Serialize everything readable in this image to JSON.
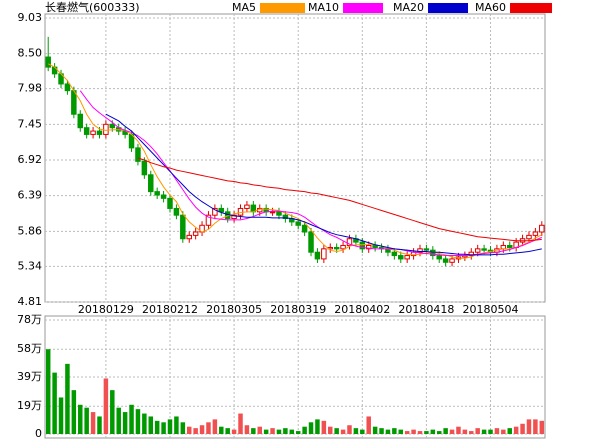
{
  "chart_data": {
    "type": "candlestick",
    "title": "长春燃气(600333)",
    "categories": [
      null,
      null,
      null,
      null,
      null,
      null,
      null,
      null,
      null,
      "20180129",
      null,
      null,
      null,
      null,
      null,
      null,
      null,
      null,
      null,
      "20180212",
      null,
      null,
      null,
      null,
      null,
      null,
      null,
      null,
      null,
      "20180305",
      null,
      null,
      null,
      null,
      null,
      null,
      null,
      null,
      null,
      "20180319",
      null,
      null,
      null,
      null,
      null,
      null,
      null,
      null,
      null,
      "20180402",
      null,
      null,
      null,
      null,
      null,
      null,
      null,
      null,
      null,
      "20180418",
      null,
      null,
      null,
      null,
      null,
      null,
      null,
      null,
      null,
      "20180504",
      null,
      null,
      null,
      null,
      null,
      null,
      null,
      null
    ],
    "open": [
      8.45,
      8.3,
      8.2,
      8.05,
      7.95,
      7.6,
      7.4,
      7.3,
      7.35,
      7.3,
      7.45,
      7.4,
      7.35,
      7.3,
      7.1,
      6.9,
      6.7,
      6.45,
      6.4,
      6.35,
      6.2,
      6.1,
      5.75,
      5.8,
      5.85,
      5.95,
      6.1,
      6.2,
      6.15,
      6.05,
      6.1,
      6.2,
      6.25,
      6.15,
      6.2,
      6.15,
      6.15,
      6.1,
      6.05,
      6.0,
      5.95,
      5.85,
      5.55,
      5.45,
      5.6,
      5.62,
      5.6,
      5.65,
      5.75,
      5.7,
      5.6,
      5.65,
      5.62,
      5.6,
      5.55,
      5.5,
      5.45,
      5.5,
      5.55,
      5.6,
      5.58,
      5.5,
      5.45,
      5.4,
      5.45,
      5.48,
      5.5,
      5.55,
      5.6,
      5.58,
      5.55,
      5.6,
      5.65,
      5.62,
      5.7,
      5.75,
      5.8,
      5.85
    ],
    "high": [
      8.75,
      8.36,
      8.26,
      8.11,
      8.01,
      7.66,
      7.46,
      7.41,
      7.41,
      7.51,
      7.51,
      7.46,
      7.41,
      7.36,
      7.16,
      6.96,
      6.76,
      6.51,
      6.46,
      6.41,
      6.26,
      6.16,
      5.86,
      5.91,
      6.01,
      6.16,
      6.26,
      6.26,
      6.21,
      6.16,
      6.26,
      6.31,
      6.31,
      6.26,
      6.26,
      6.21,
      6.21,
      6.16,
      6.11,
      6.06,
      6.01,
      5.91,
      5.61,
      5.66,
      5.68,
      5.68,
      5.71,
      5.81,
      5.81,
      5.76,
      5.71,
      5.71,
      5.68,
      5.66,
      5.61,
      5.56,
      5.56,
      5.61,
      5.66,
      5.66,
      5.64,
      5.56,
      5.51,
      5.51,
      5.54,
      5.56,
      5.61,
      5.66,
      5.66,
      5.64,
      5.66,
      5.71,
      5.71,
      5.76,
      5.81,
      5.86,
      5.91,
      6.01
    ],
    "low": [
      8.24,
      8.14,
      7.99,
      7.89,
      7.54,
      7.34,
      7.24,
      7.24,
      7.24,
      7.24,
      7.34,
      7.29,
      7.24,
      7.04,
      6.84,
      6.64,
      6.39,
      6.34,
      6.29,
      6.14,
      6.04,
      5.69,
      5.69,
      5.74,
      5.79,
      5.89,
      6.04,
      6.09,
      5.99,
      5.99,
      6.04,
      6.14,
      6.09,
      6.09,
      6.09,
      6.09,
      6.04,
      5.99,
      5.94,
      5.89,
      5.79,
      5.49,
      5.39,
      5.39,
      5.54,
      5.54,
      5.54,
      5.59,
      5.64,
      5.54,
      5.54,
      5.56,
      5.54,
      5.49,
      5.44,
      5.39,
      5.39,
      5.44,
      5.49,
      5.52,
      5.44,
      5.39,
      5.34,
      5.34,
      5.39,
      5.42,
      5.44,
      5.49,
      5.52,
      5.49,
      5.49,
      5.54,
      5.56,
      5.56,
      5.64,
      5.69,
      5.74,
      5.79
    ],
    "close": [
      8.3,
      8.2,
      8.05,
      7.95,
      7.6,
      7.4,
      7.3,
      7.35,
      7.3,
      7.45,
      7.4,
      7.35,
      7.3,
      7.1,
      6.9,
      6.7,
      6.45,
      6.4,
      6.35,
      6.2,
      6.1,
      5.75,
      5.8,
      5.85,
      5.95,
      6.1,
      6.2,
      6.15,
      6.05,
      6.1,
      6.2,
      6.25,
      6.15,
      6.2,
      6.15,
      6.15,
      6.1,
      6.05,
      6.0,
      5.95,
      5.85,
      5.55,
      5.45,
      5.6,
      5.62,
      5.6,
      5.65,
      5.75,
      5.7,
      5.6,
      5.65,
      5.62,
      5.6,
      5.55,
      5.5,
      5.45,
      5.5,
      5.55,
      5.6,
      5.58,
      5.5,
      5.45,
      5.4,
      5.45,
      5.48,
      5.5,
      5.55,
      5.6,
      5.58,
      5.55,
      5.6,
      5.65,
      5.62,
      5.7,
      5.75,
      5.8,
      5.85,
      5.95
    ],
    "up_color": "#e00000",
    "down_color": "#009900",
    "series": [
      {
        "name": "MA5",
        "color": "#ff9900",
        "values": [
          8.35,
          8.3,
          8.2,
          8.1,
          7.95,
          7.8,
          7.6,
          7.45,
          7.38,
          7.36,
          7.37,
          7.37,
          7.36,
          7.3,
          7.2,
          7.05,
          6.85,
          6.67,
          6.52,
          6.4,
          6.3,
          6.12,
          6.0,
          5.92,
          5.85,
          5.89,
          5.98,
          6.05,
          6.09,
          6.12,
          6.14,
          6.15,
          6.15,
          6.19,
          6.19,
          6.18,
          6.17,
          6.13,
          6.09,
          6.05,
          5.99,
          5.88,
          5.76,
          5.66,
          5.58,
          5.56,
          5.58,
          5.64,
          5.66,
          5.66,
          5.67,
          5.66,
          5.64,
          5.6,
          5.58,
          5.54,
          5.52,
          5.51,
          5.52,
          5.54,
          5.55,
          5.53,
          5.51,
          5.48,
          5.46,
          5.46,
          5.48,
          5.52,
          5.54,
          5.56,
          5.58,
          5.6,
          5.6,
          5.62,
          5.66,
          5.7,
          5.76,
          5.81
        ]
      },
      {
        "name": "MA10",
        "color": "#ff00ff",
        "values": [
          null,
          null,
          null,
          null,
          null,
          7.95,
          7.82,
          7.7,
          7.62,
          7.55,
          7.48,
          7.4,
          7.36,
          7.33,
          7.28,
          7.21,
          7.12,
          7.01,
          6.88,
          6.76,
          6.62,
          6.48,
          6.34,
          6.22,
          6.13,
          6.07,
          6.05,
          6.04,
          6.03,
          6.03,
          6.03,
          6.05,
          6.08,
          6.12,
          6.15,
          6.16,
          6.16,
          6.15,
          6.14,
          6.12,
          6.07,
          6.0,
          5.93,
          5.87,
          5.81,
          5.77,
          5.72,
          5.67,
          5.64,
          5.62,
          5.61,
          5.6,
          5.6,
          5.6,
          5.6,
          5.59,
          5.57,
          5.55,
          5.54,
          5.53,
          5.52,
          5.51,
          5.5,
          5.5,
          5.5,
          5.5,
          5.51,
          5.52,
          5.53,
          5.54,
          5.55,
          5.57,
          5.59,
          5.62,
          5.65,
          5.69,
          5.73,
          5.77
        ]
      },
      {
        "name": "MA20",
        "color": "#0000cc",
        "values": [
          null,
          null,
          null,
          null,
          null,
          null,
          null,
          null,
          null,
          7.6,
          7.55,
          7.5,
          7.42,
          7.35,
          7.25,
          7.15,
          7.05,
          6.95,
          6.85,
          6.75,
          6.65,
          6.55,
          6.45,
          6.37,
          6.3,
          6.24,
          6.18,
          6.14,
          6.11,
          6.09,
          6.08,
          6.07,
          6.07,
          6.07,
          6.07,
          6.06,
          6.06,
          6.06,
          6.05,
          6.03,
          6.0,
          5.96,
          5.92,
          5.88,
          5.84,
          5.81,
          5.79,
          5.77,
          5.75,
          5.72,
          5.69,
          5.66,
          5.64,
          5.62,
          5.6,
          5.59,
          5.58,
          5.57,
          5.56,
          5.56,
          5.55,
          5.55,
          5.54,
          5.53,
          5.52,
          5.52,
          5.51,
          5.51,
          5.51,
          5.51,
          5.52,
          5.52,
          5.53,
          5.54,
          5.55,
          5.56,
          5.58,
          5.6
        ]
      },
      {
        "name": "MA60",
        "color": "#ee0000",
        "values": [
          null,
          null,
          null,
          null,
          null,
          null,
          null,
          null,
          null,
          null,
          null,
          null,
          null,
          null,
          6.95,
          6.92,
          6.88,
          6.85,
          6.82,
          6.8,
          6.77,
          6.75,
          6.73,
          6.71,
          6.69,
          6.67,
          6.65,
          6.63,
          6.61,
          6.6,
          6.58,
          6.57,
          6.55,
          6.54,
          6.52,
          6.51,
          6.5,
          6.48,
          6.47,
          6.46,
          6.45,
          6.43,
          6.42,
          6.4,
          6.38,
          6.36,
          6.34,
          6.32,
          6.29,
          6.26,
          6.23,
          6.2,
          6.17,
          6.14,
          6.11,
          6.08,
          6.05,
          6.02,
          5.99,
          5.96,
          5.93,
          5.9,
          5.88,
          5.86,
          5.84,
          5.82,
          5.8,
          5.78,
          5.77,
          5.76,
          5.75,
          5.74,
          5.73,
          5.72,
          5.72,
          5.72,
          5.73,
          5.74
        ]
      }
    ],
    "ylim": [
      4.81,
      9.03
    ],
    "yticks": [
      9.03,
      {
        "value": 8.5,
        "label": "8.50"
      },
      7.98,
      7.45,
      6.92,
      6.39,
      5.86,
      5.34,
      4.81
    ],
    "volume": {
      "values": [
        58,
        42,
        25,
        48,
        30,
        20,
        18,
        15,
        12,
        38,
        30,
        18,
        15,
        20,
        17,
        14,
        12,
        9,
        8,
        10,
        12,
        8,
        5,
        4,
        6,
        8,
        10,
        5,
        4,
        3,
        14,
        6,
        4,
        5,
        3,
        4,
        3,
        4,
        3,
        2,
        5,
        8,
        10,
        9,
        5,
        4,
        3,
        6,
        4,
        3,
        12,
        5,
        4,
        3,
        4,
        3,
        2,
        3,
        2,
        2,
        3,
        2,
        4,
        3,
        5,
        3,
        2,
        4,
        3,
        3,
        4,
        3,
        4,
        5,
        7,
        10,
        10,
        9
      ],
      "ylim": [
        0,
        78
      ],
      "yticks": [
        {
          "value": 78,
          "label": "78万"
        },
        {
          "value": 58,
          "label": "58万"
        },
        {
          "value": 39,
          "label": "39万"
        },
        {
          "value": 19,
          "label": "19万"
        },
        0
      ]
    },
    "grid": true
  }
}
